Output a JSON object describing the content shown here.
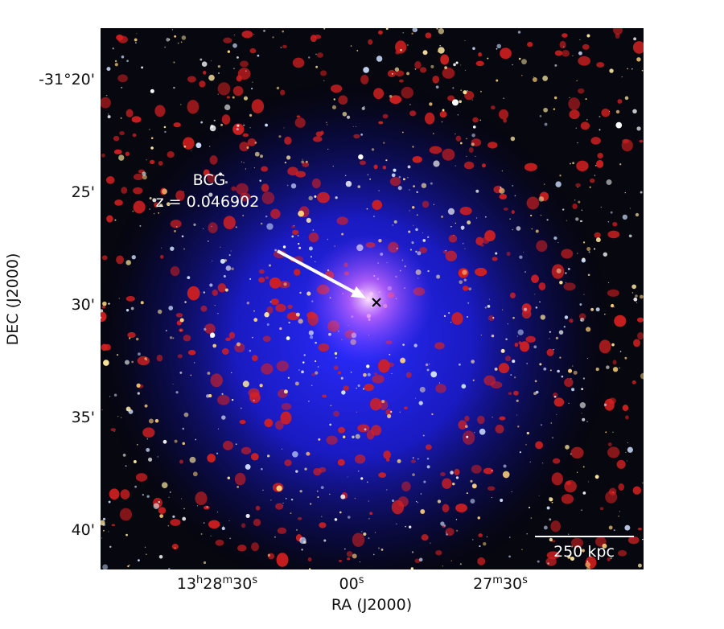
{
  "figure": {
    "y_axis_label": "DEC (J2000)",
    "x_axis_label": "RA (J2000)",
    "y_ticks": [
      "-31°20'",
      "25'",
      "30'",
      "35'",
      "40'"
    ],
    "x_ticks": [
      [
        "13",
        "h",
        "28",
        "m",
        "30",
        "s"
      ],
      [
        "00",
        "s"
      ],
      [
        "27",
        "m",
        "30",
        "s"
      ]
    ],
    "annotation": {
      "name": "BCG",
      "redshift": "z = 0.046902"
    },
    "scale_bar": "250 kpc"
  }
}
